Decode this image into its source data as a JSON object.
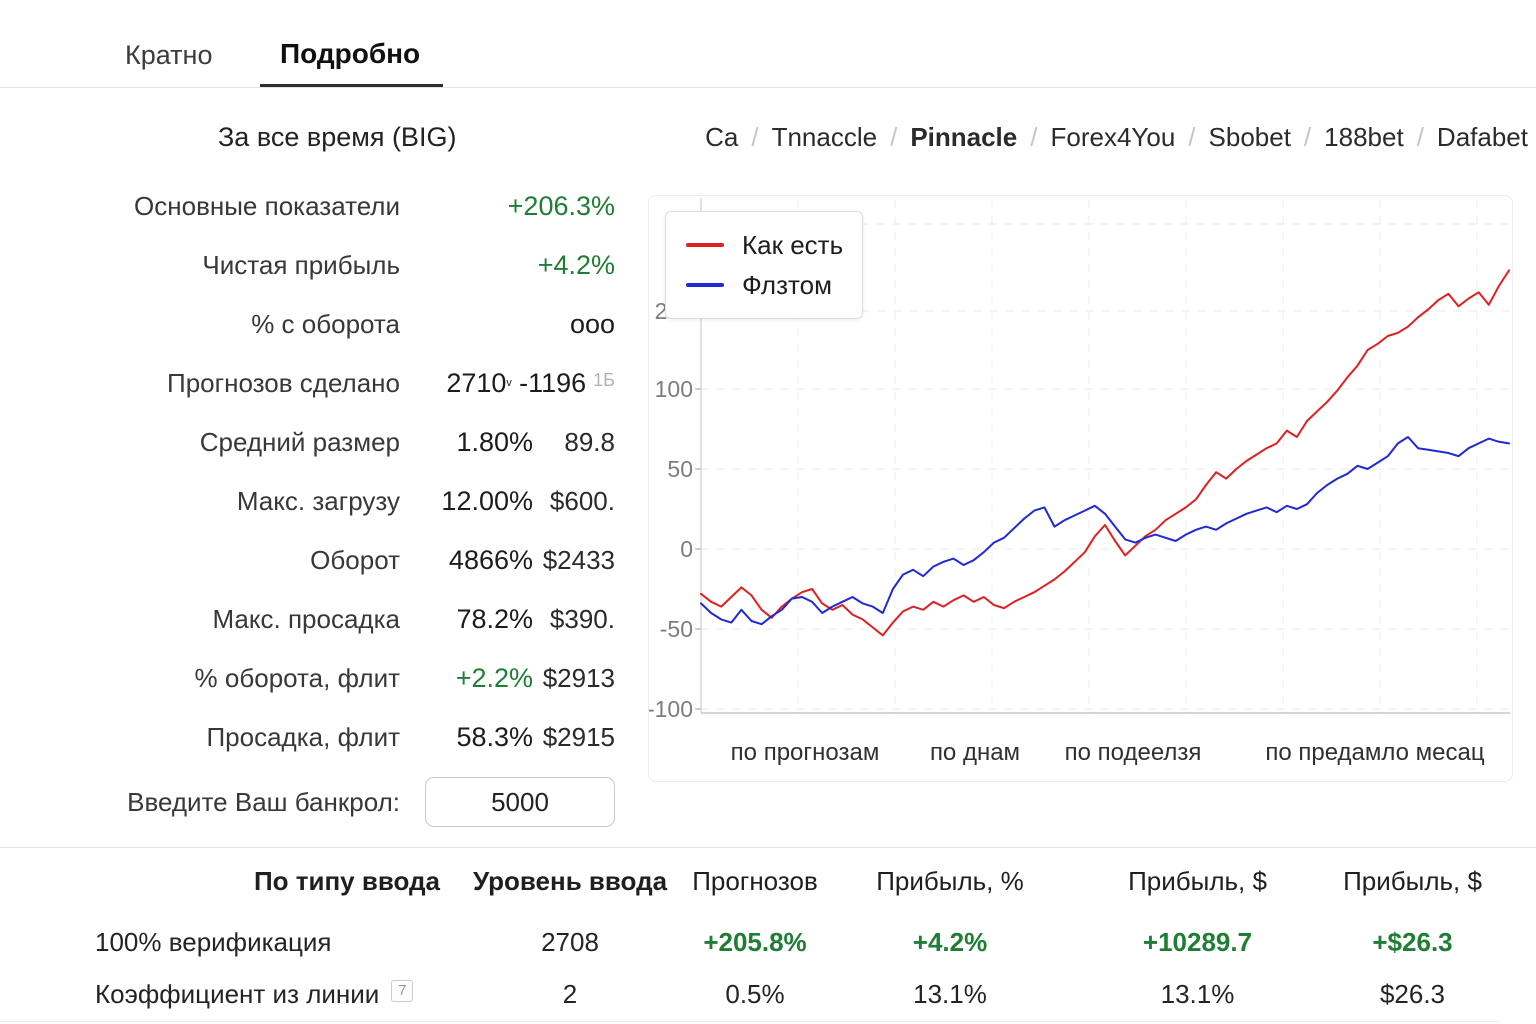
{
  "tabs": {
    "brief": "Кратно",
    "detailed": "Подробно"
  },
  "period_selector": "За все время (BIG)",
  "breadcrumb": {
    "separator": "/",
    "items": [
      "Ca",
      "Tnnaccle",
      "Pinnacle",
      "Forex4You",
      "Sbobet",
      "188bet",
      "Dafabet"
    ]
  },
  "stats": {
    "rows": [
      {
        "label": "Основные показатели",
        "value": "+206.3%"
      },
      {
        "label": "Чистая прибыль",
        "value": "+4.2%"
      },
      {
        "label": "% с оборота",
        "value": "ооо"
      },
      {
        "label": "Прогнозов сделано",
        "value_main": "2710",
        "value_sup": "ᵛ",
        "value_second": "-1196",
        "value_note": "1Б"
      },
      {
        "label": "Средний размер",
        "value1": "1.80%",
        "value2": "89.8"
      },
      {
        "label": "Макс. загрузу",
        "value1": "12.00%",
        "value2": "$600."
      },
      {
        "label": "Оборот",
        "value1": "4866%",
        "value2": "$2433"
      },
      {
        "label": "Макс. просадка",
        "value1": "78.2%",
        "value2": "$390."
      },
      {
        "label": "% оборота, флит",
        "value1": "+2.2%",
        "value2": "$2913"
      },
      {
        "label": "Просадка, флит",
        "value1": "58.3%",
        "value2": "$2915"
      }
    ],
    "bankroll_label": "Введите Ваш банкрол:",
    "bankroll_value": "5000"
  },
  "chart_data": {
    "type": "line",
    "legend": [
      "Как есть",
      "Флзтом"
    ],
    "legend_position": "top-left",
    "grid": true,
    "y_tick_labels": [
      "200",
      "100",
      "50",
      "0",
      "-50",
      "-100"
    ],
    "y_axis_scale": "custom ticks evenly spaced: -100,-50,0,50,100,200",
    "x_axis_labels": [
      "по прогнозам",
      "по днам",
      "по подеелзя",
      "по предамло месац"
    ],
    "series": [
      {
        "name": "Как есть",
        "color": "#e02020",
        "values": [
          -28,
          -33,
          -36,
          -30,
          -24,
          -29,
          -38,
          -43,
          -36,
          -31,
          -27,
          -25,
          -34,
          -38,
          -35,
          -41,
          -44,
          -49,
          -54,
          -46,
          -39,
          -36,
          -38,
          -33,
          -36,
          -32,
          -29,
          -33,
          -30,
          -35,
          -37,
          -33,
          -30,
          -27,
          -23,
          -19,
          -14,
          -8,
          -2,
          8,
          15,
          5,
          -4,
          2,
          8,
          12,
          18,
          22,
          26,
          31,
          40,
          48,
          44,
          50,
          55,
          59,
          63,
          66,
          74,
          70,
          80,
          86,
          92,
          99,
          115,
          130,
          150,
          158,
          168,
          172,
          180,
          192,
          202,
          214,
          222,
          206,
          216,
          224,
          208,
          232,
          252
        ]
      },
      {
        "name": "Флзтом",
        "color": "#1f2ad6",
        "values": [
          -34,
          -40,
          -44,
          -46,
          -38,
          -45,
          -47,
          -42,
          -38,
          -31,
          -30,
          -33,
          -40,
          -36,
          -33,
          -30,
          -34,
          -36,
          -40,
          -25,
          -16,
          -13,
          -17,
          -11,
          -8,
          -6,
          -10,
          -7,
          -2,
          4,
          7,
          13,
          19,
          24,
          26,
          14,
          18,
          21,
          24,
          27,
          22,
          14,
          6,
          4,
          7,
          9,
          7,
          5,
          9,
          12,
          14,
          12,
          16,
          19,
          22,
          24,
          26,
          23,
          27,
          25,
          28,
          35,
          40,
          44,
          47,
          52,
          50,
          54,
          58,
          66,
          70,
          63,
          62,
          61,
          60,
          58,
          63,
          66,
          69,
          67,
          66
        ]
      }
    ]
  },
  "table": {
    "headers": [
      "По типу ввода",
      "Уровень ввода",
      "Прогнозов",
      "Прибыль, %",
      "Прибыль, $",
      "Прибыль, $"
    ],
    "rows": [
      {
        "label": "100% верификация",
        "level": "2708",
        "forecasts": "+205.8%",
        "profit_pct": "+4.2%",
        "profit_usd": "+10289.7",
        "profit_usd2": "+$26.3"
      },
      {
        "label": "Коэффициент из линии",
        "note": "7",
        "level": "2",
        "forecasts": "0.5%",
        "profit_pct": "13.1%",
        "profit_usd": "13.1%",
        "profit_usd2": "$26.3"
      }
    ]
  },
  "colors": {
    "positive": "#1e7e34",
    "series_red": "#e02020",
    "series_blue": "#1f2ad6"
  }
}
